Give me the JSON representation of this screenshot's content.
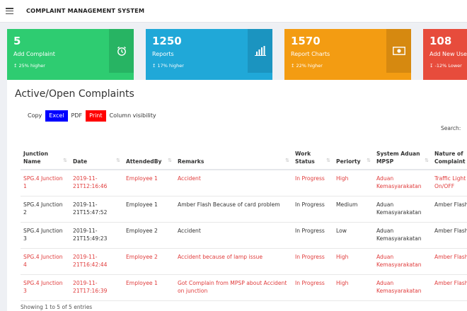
{
  "header": {
    "title": "COMPLAINT MANAGEMENT SYSTEM"
  },
  "cards": [
    {
      "value": "5",
      "label": "Add Complaint",
      "trend": "↥ 25% higher",
      "icon": "alarm-clock-icon"
    },
    {
      "value": "1250",
      "label": "Reports",
      "trend": "↥ 17% higher",
      "icon": "bar-chart-icon"
    },
    {
      "value": "1570",
      "label": "Report Charts",
      "trend": "↥ 22% higher",
      "icon": "money-icon"
    },
    {
      "value": "108",
      "label": "Add New User",
      "trend": "↧ -12% Lower",
      "icon": "user-icon"
    }
  ],
  "panel": {
    "title": "Active/Open Complaints",
    "buttons": [
      "Copy",
      "Excel",
      "PDF",
      "Print",
      "Column visibility"
    ],
    "search_label": "Search:",
    "info": "Showing 1 to 5 of 5 entries"
  },
  "table": {
    "headers": [
      "Junction Name",
      "Date",
      "AttendedBy",
      "Remarks",
      "Work Status",
      "Periorty",
      "System Aduan MPSP",
      "Nature of Complaint"
    ],
    "rows": [
      {
        "highlight": true,
        "cells": [
          "SPG.4 Junction 1",
          "2019-11-21T12:16:46",
          "Employee 1",
          "Accident",
          "In Progress",
          "High",
          "Aduan Kemasyarakatan",
          "Traffic Light On/OFF"
        ]
      },
      {
        "highlight": false,
        "cells": [
          "SPG.4 Junction 2",
          "2019-11-21T15:47:52",
          "Employee 1",
          "Amber Flash Because of card problem",
          "In Progress",
          "Medium",
          "Aduan Kemasyarakatan",
          "Amber Flash"
        ]
      },
      {
        "highlight": false,
        "cells": [
          "SPG.4 Junction 3",
          "2019-11-21T15:49:23",
          "Employee 2",
          "Accident",
          "In Progress",
          "Low",
          "Aduan Kemasyarakatan",
          "Amber Flash"
        ]
      },
      {
        "highlight": true,
        "cells": [
          "SPG.4 Junction 4",
          "2019-11-21T16:42:44",
          "Employee 2",
          "Accident because of lamp issue",
          "In Progress",
          "High",
          "Aduan Kemasyarakatan",
          "Amber Flash"
        ]
      },
      {
        "highlight": true,
        "cells": [
          "SPG.4 Junction 3",
          "2019-11-21T17:16:39",
          "Employee 1",
          "Got Complain from MPSP about Accident on junction",
          "In Progress",
          "High",
          "Aduan Kemasyarakatan",
          "Amber Flash"
        ]
      }
    ]
  },
  "colors": {
    "green": "#2ecc71",
    "blue": "#20a8d8",
    "orange": "#f39c12",
    "red": "#e74c3c",
    "row_red": "#e03b3b"
  }
}
